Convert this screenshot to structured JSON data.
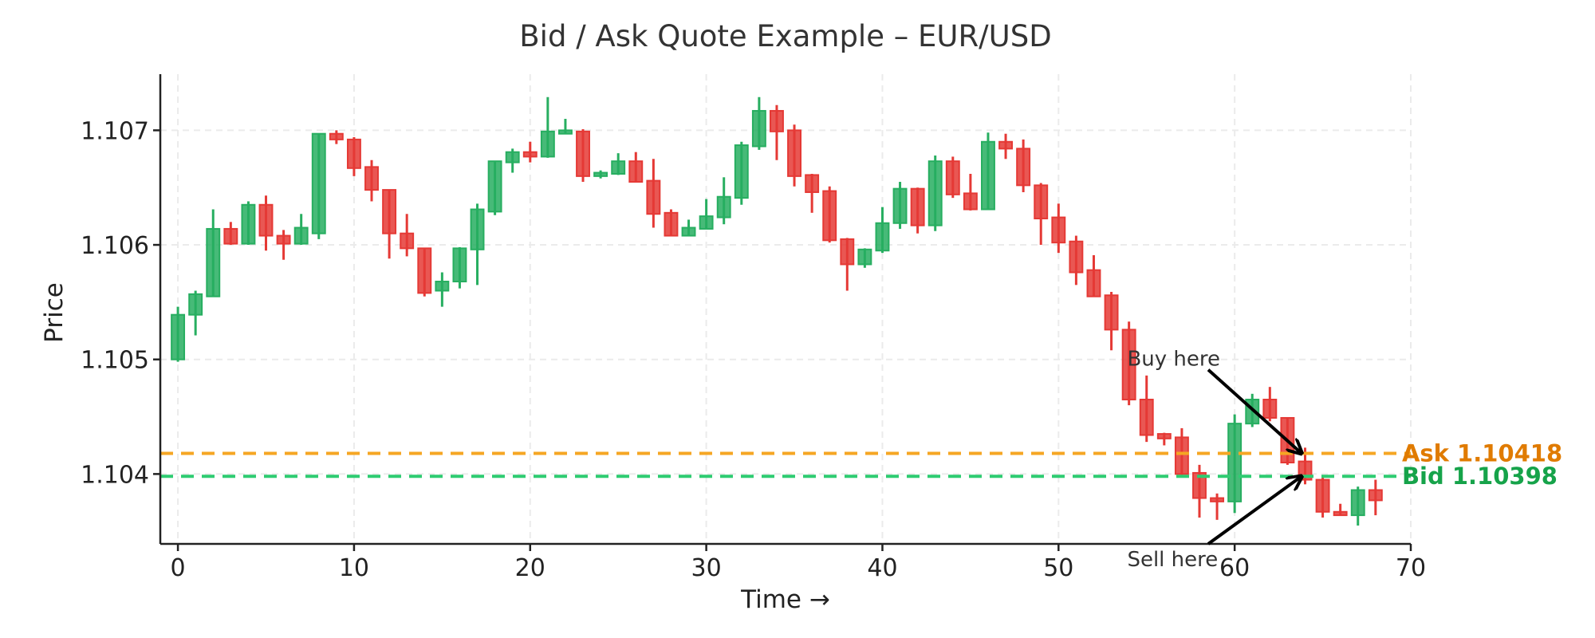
{
  "chart_data": {
    "type": "candlestick",
    "title": "Bid / Ask Quote Example – EUR/USD",
    "xlabel": "Time →",
    "ylabel": "Price",
    "xlim": [
      -1,
      70
    ],
    "ylim": [
      1.10339,
      1.10749
    ],
    "x_ticks": [
      0,
      10,
      20,
      30,
      40,
      50,
      60,
      70
    ],
    "y_ticks": [
      1.104,
      1.105,
      1.106,
      1.107
    ],
    "y_tick_labels": [
      "1.104",
      "1.105",
      "1.106",
      "1.107"
    ],
    "grid": true,
    "colors": {
      "up": "#27ae60",
      "down": "#e53935",
      "ask": "#f5a623",
      "bid": "#2ecc71",
      "ask_label": "#e07b00",
      "bid_label": "#16a34a",
      "text": "#333333"
    },
    "ohlc_fields": [
      "open",
      "high",
      "low",
      "close"
    ],
    "candles": [
      [
        1.105,
        1.10546,
        1.10498,
        1.10539
      ],
      [
        1.10539,
        1.1056,
        1.10521,
        1.10557
      ],
      [
        1.10555,
        1.10631,
        1.10555,
        1.10614
      ],
      [
        1.10614,
        1.1062,
        1.106,
        1.10601
      ],
      [
        1.10601,
        1.10638,
        1.106,
        1.10635
      ],
      [
        1.10635,
        1.10643,
        1.10595,
        1.10608
      ],
      [
        1.10608,
        1.10613,
        1.10587,
        1.10601
      ],
      [
        1.10601,
        1.10627,
        1.106,
        1.10615
      ],
      [
        1.1061,
        1.10697,
        1.10605,
        1.10697
      ],
      [
        1.10697,
        1.107,
        1.10688,
        1.10692
      ],
      [
        1.10692,
        1.10694,
        1.1066,
        1.10667
      ],
      [
        1.10668,
        1.10674,
        1.10638,
        1.10648
      ],
      [
        1.10648,
        1.10648,
        1.10588,
        1.1061
      ],
      [
        1.1061,
        1.10627,
        1.1059,
        1.10597
      ],
      [
        1.10597,
        1.10597,
        1.10555,
        1.10558
      ],
      [
        1.1056,
        1.10576,
        1.10546,
        1.10568
      ],
      [
        1.10568,
        1.10598,
        1.10562,
        1.10597
      ],
      [
        1.10596,
        1.10636,
        1.10565,
        1.10631
      ],
      [
        1.10629,
        1.10673,
        1.10626,
        1.10673
      ],
      [
        1.10672,
        1.10684,
        1.10663,
        1.10681
      ],
      [
        1.10681,
        1.1069,
        1.10672,
        1.10677
      ],
      [
        1.10677,
        1.10729,
        1.10676,
        1.10699
      ],
      [
        1.10697,
        1.1071,
        1.10697,
        1.107
      ],
      [
        1.10699,
        1.10701,
        1.10655,
        1.1066
      ],
      [
        1.1066,
        1.10665,
        1.10658,
        1.10663
      ],
      [
        1.10662,
        1.1068,
        1.10661,
        1.10673
      ],
      [
        1.10673,
        1.10681,
        1.10655,
        1.10655
      ],
      [
        1.10656,
        1.10675,
        1.10615,
        1.10627
      ],
      [
        1.10628,
        1.10631,
        1.10608,
        1.10608
      ],
      [
        1.10608,
        1.10622,
        1.10608,
        1.10615
      ],
      [
        1.10614,
        1.1064,
        1.10614,
        1.10625
      ],
      [
        1.10624,
        1.10659,
        1.10618,
        1.10642
      ],
      [
        1.10641,
        1.1069,
        1.10635,
        1.10687
      ],
      [
        1.10686,
        1.10729,
        1.10683,
        1.10717
      ],
      [
        1.10717,
        1.10722,
        1.10674,
        1.10699
      ],
      [
        1.107,
        1.10705,
        1.10651,
        1.1066
      ],
      [
        1.10661,
        1.10662,
        1.10628,
        1.10646
      ],
      [
        1.10647,
        1.10651,
        1.10602,
        1.10604
      ],
      [
        1.10605,
        1.10606,
        1.1056,
        1.10583
      ],
      [
        1.10583,
        1.10597,
        1.1058,
        1.10596
      ],
      [
        1.10595,
        1.10633,
        1.10593,
        1.10619
      ],
      [
        1.10619,
        1.10655,
        1.10614,
        1.10649
      ],
      [
        1.10649,
        1.1065,
        1.1061,
        1.10617
      ],
      [
        1.10617,
        1.10678,
        1.10612,
        1.10673
      ],
      [
        1.10673,
        1.10677,
        1.10641,
        1.10644
      ],
      [
        1.10645,
        1.10662,
        1.1063,
        1.10631
      ],
      [
        1.10631,
        1.10698,
        1.10631,
        1.1069
      ],
      [
        1.1069,
        1.10697,
        1.10675,
        1.10684
      ],
      [
        1.10684,
        1.10692,
        1.10646,
        1.10652
      ],
      [
        1.10652,
        1.10654,
        1.106,
        1.10623
      ],
      [
        1.10624,
        1.10636,
        1.10593,
        1.10602
      ],
      [
        1.10603,
        1.10608,
        1.10565,
        1.10576
      ],
      [
        1.10578,
        1.10591,
        1.10555,
        1.10555
      ],
      [
        1.10556,
        1.10559,
        1.10508,
        1.10526
      ],
      [
        1.10526,
        1.10533,
        1.1046,
        1.10465
      ],
      [
        1.10465,
        1.10486,
        1.10428,
        1.10434
      ],
      [
        1.10435,
        1.10436,
        1.10425,
        1.10431
      ],
      [
        1.10432,
        1.1044,
        1.10398,
        1.104
      ],
      [
        1.10401,
        1.10408,
        1.10362,
        1.10379
      ],
      [
        1.10379,
        1.10383,
        1.1036,
        1.10376
      ],
      [
        1.10376,
        1.10452,
        1.10366,
        1.10444
      ],
      [
        1.10444,
        1.1047,
        1.10441,
        1.10465
      ],
      [
        1.10465,
        1.10476,
        1.10446,
        1.10449
      ],
      [
        1.10449,
        1.10449,
        1.10408,
        1.1041
      ],
      [
        1.10411,
        1.10423,
        1.10391,
        1.10395
      ],
      [
        1.10395,
        1.10398,
        1.10362,
        1.10367
      ],
      [
        1.10367,
        1.10374,
        1.10364,
        1.10364
      ],
      [
        1.10364,
        1.10389,
        1.10355,
        1.10386
      ],
      [
        1.10386,
        1.10395,
        1.10364,
        1.10377
      ]
    ],
    "ask": {
      "value": 1.10418,
      "label": "Ask 1.10418"
    },
    "bid": {
      "value": 1.10398,
      "label": "Bid 1.10398"
    },
    "annotations": [
      {
        "text": "Buy here",
        "text_xy": [
          53.9,
          1.105
        ],
        "arrow_from": [
          58.5,
          1.10491
        ],
        "arrow_to": [
          63.8,
          1.10418
        ]
      },
      {
        "text": "Sell here",
        "text_xy": [
          53.9,
          1.10325
        ],
        "arrow_from": [
          58.5,
          1.10339
        ],
        "arrow_to": [
          63.8,
          1.10398
        ]
      }
    ]
  }
}
